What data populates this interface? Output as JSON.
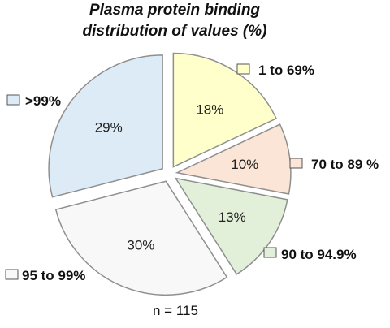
{
  "chart_data": {
    "type": "pie",
    "title_line1": "Plasma protein binding",
    "title_line2": "distribution of values (%)",
    "note": "n = 115",
    "exploded": true,
    "legend_placement": "labels beside each slice",
    "slices": [
      {
        "label": "1 to 69%",
        "value": 18,
        "value_label": "18%",
        "color": "#FFFFCC"
      },
      {
        "label": "70 to 89 %",
        "value": 10,
        "value_label": "10%",
        "color": "#FBE5D6"
      },
      {
        "label": "90 to 94.9%",
        "value": 13,
        "value_label": "13%",
        "color": "#E2F0D9"
      },
      {
        "label": "95 to 99%",
        "value": 30,
        "value_label": "30%",
        "color": "#F8F8F8"
      },
      {
        "label": ">99%",
        "value": 29,
        "value_label": "29%",
        "color": "#DDEBF7"
      }
    ],
    "edge_color": "#8F8F8F"
  }
}
